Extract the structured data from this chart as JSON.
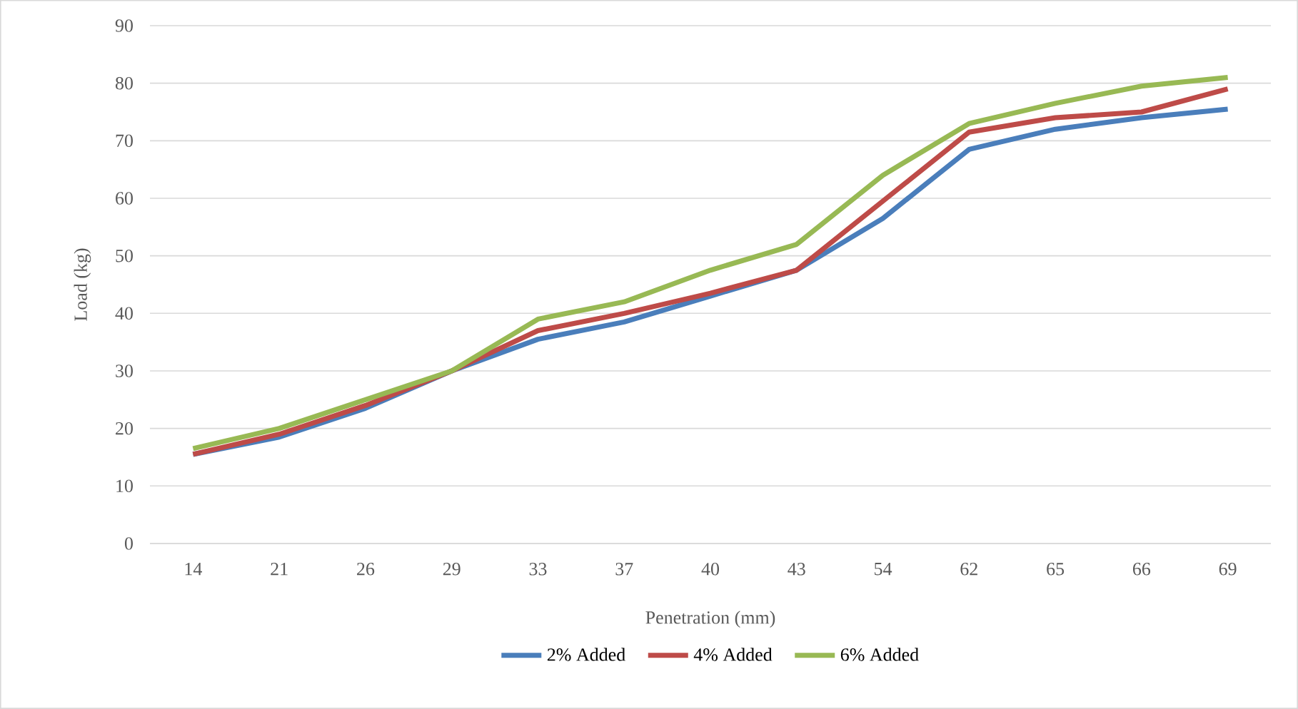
{
  "chart_data": {
    "type": "line",
    "xlabel": "Penetration (mm)",
    "ylabel": "Load (kg)",
    "categories": [
      "14",
      "21",
      "26",
      "29",
      "33",
      "37",
      "40",
      "43",
      "54",
      "62",
      "65",
      "66",
      "69"
    ],
    "series": [
      {
        "name": "2% Added",
        "color": "#4a7ebb",
        "values": [
          15.5,
          18.5,
          23.5,
          30,
          35.5,
          38.5,
          43,
          47.5,
          56.5,
          68.5,
          72,
          74,
          75.5
        ]
      },
      {
        "name": "4% Added",
        "color": "#be4b48",
        "values": [
          15.5,
          19,
          24,
          30,
          37,
          40,
          43.5,
          47.5,
          59.5,
          71.5,
          74,
          75,
          79
        ]
      },
      {
        "name": "6% Added",
        "color": "#98b954",
        "values": [
          16.5,
          20,
          25,
          30,
          39,
          42,
          47.5,
          52,
          64,
          73,
          76.5,
          79.5,
          81
        ]
      }
    ],
    "ylim": [
      0,
      90
    ],
    "yticks": [
      0,
      10,
      20,
      30,
      40,
      50,
      60,
      70,
      80,
      90
    ],
    "grid": "y",
    "legend": "bottom"
  }
}
